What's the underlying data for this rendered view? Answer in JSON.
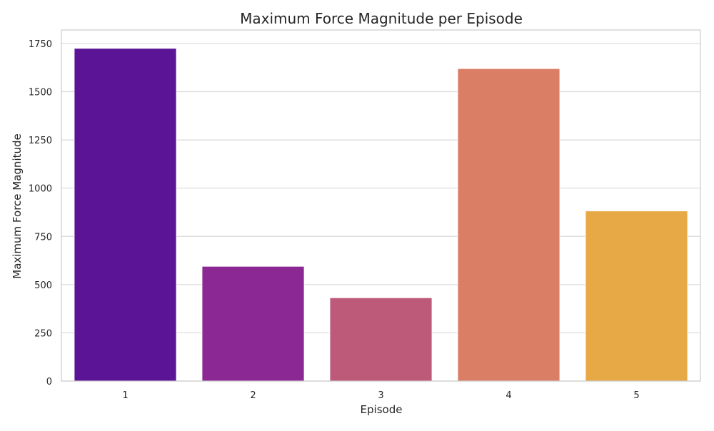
{
  "chart_data": {
    "type": "bar",
    "title": "Maximum Force Magnitude per Episode",
    "xlabel": "Episode",
    "ylabel": "Maximum Force Magnitude",
    "categories": [
      "1",
      "2",
      "3",
      "4",
      "5"
    ],
    "values": [
      1725,
      595,
      432,
      1620,
      882
    ],
    "bar_colors": [
      "#5c1497",
      "#8b2894",
      "#bd5a7a",
      "#da7f66",
      "#e7a946"
    ],
    "ylim": [
      0,
      1820
    ],
    "yticks": [
      0,
      250,
      500,
      750,
      1000,
      1250,
      1500,
      1750
    ],
    "grid": "horizontal",
    "style_colors": {
      "grid": "#d9d9d9",
      "frame": "#cccccc",
      "text": "#262626"
    }
  }
}
